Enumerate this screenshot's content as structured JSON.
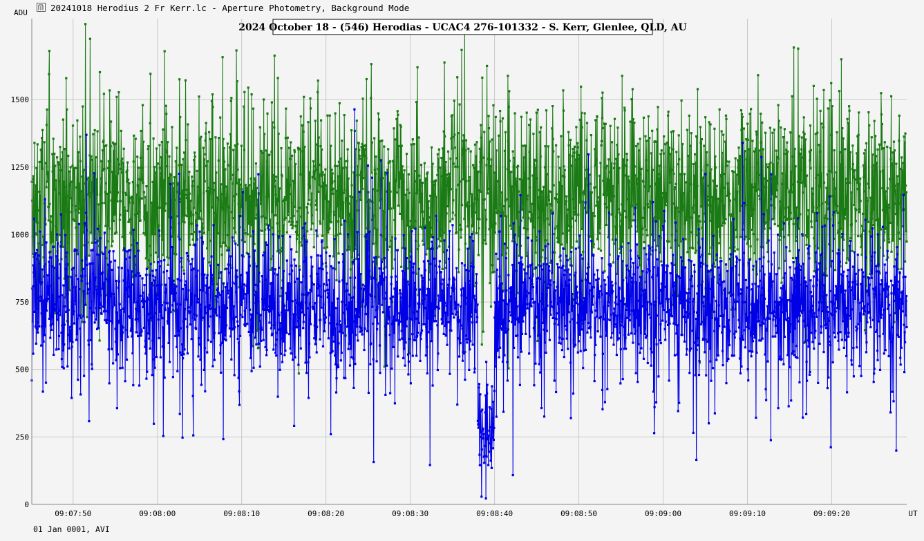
{
  "window": {
    "title": "20241018 Herodius 2 Fr Kerr.lc - Aperture Photometry, Background Mode",
    "icon": "light-curve-icon"
  },
  "footer": {
    "date_label": "01 Jan 0001, AVI"
  },
  "colors": {
    "background": "#f4f4f4",
    "grid": "#c8c8c8",
    "target_series": "#0000e6",
    "reference_series": "#1a7a14"
  },
  "chart_data": {
    "type": "line",
    "title": "2024 October 18 - (546) Herodias - UCAC4 276-101332 - S. Kerr, Glenlee, QLD, AU",
    "ylabel": "ADU",
    "xlabel": "UT",
    "ylim": [
      0,
      1800
    ],
    "xlim_seconds": [
      "09:07:45.1",
      "09:09:28.9"
    ],
    "grid": true,
    "y_ticks": [
      "0",
      "250",
      "500",
      "750",
      "1000",
      "1250",
      "1500"
    ],
    "x_ticks": [
      "09:07:50",
      "09:08:00",
      "09:08:10",
      "09:08:20",
      "09:08:30",
      "09:08:40",
      "09:08:50",
      "09:09:00",
      "09:09:10",
      "09:09:20",
      "UT"
    ],
    "sample_rate_hz": 25,
    "series": [
      {
        "role": "target",
        "color": "#0000e6",
        "baseline_adu": 740,
        "noise_sigma_adu": 130,
        "event": {
          "start": "09:08:38.0",
          "end": "09:08:40.0",
          "min_adu": 10,
          "mean_adu": 250
        }
      },
      {
        "role": "comparison",
        "color": "#1a7a14",
        "baseline_adu": 1130,
        "noise_sigma_adu": 175
      }
    ]
  }
}
